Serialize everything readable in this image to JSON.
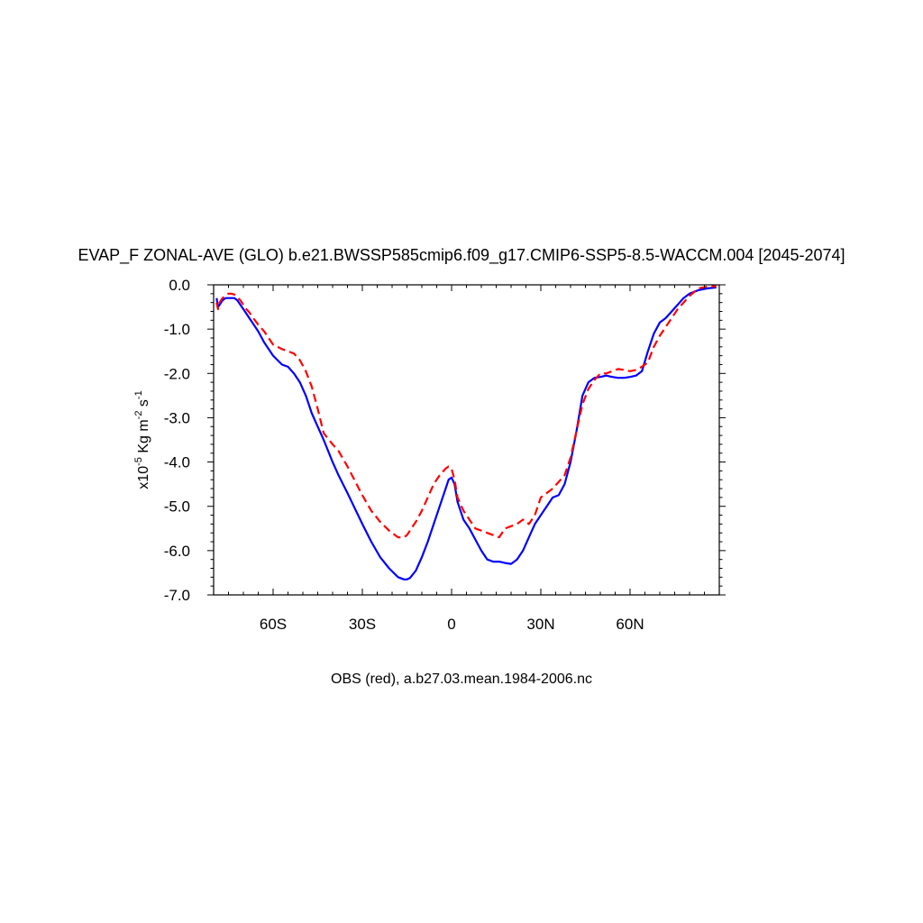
{
  "chart_data": {
    "type": "line",
    "title": "EVAP_F ZONAL-AVE (GLO) b.e21.BWSSP585cmip6.f09_g17.CMIP6-SSP5-8.5-WACCM.004 [2045-2074]",
    "subtitle": "OBS (red), a.b27.03.mean.1984-2006.nc",
    "ylabel": {
      "prefix": "x10",
      "exp1": "-5",
      "unit1": " Kg m",
      "exp2": "-2",
      "unit2": " s",
      "exp3": "-1"
    },
    "xlim": [
      -80,
      90
    ],
    "ylim": [
      -7.0,
      0.0
    ],
    "grid": false,
    "xticks": [
      {
        "value": -60,
        "label": "60S"
      },
      {
        "value": -30,
        "label": "30S"
      },
      {
        "value": 0,
        "label": "0"
      },
      {
        "value": 30,
        "label": "30N"
      },
      {
        "value": 60,
        "label": "60N"
      }
    ],
    "yticks": [
      {
        "value": 0.0,
        "label": "0.0"
      },
      {
        "value": -1.0,
        "label": "-1.0"
      },
      {
        "value": -2.0,
        "label": "-2.0"
      },
      {
        "value": -3.0,
        "label": "-3.0"
      },
      {
        "value": -4.0,
        "label": "-4.0"
      },
      {
        "value": -5.0,
        "label": "-5.0"
      },
      {
        "value": -6.0,
        "label": "-6.0"
      },
      {
        "value": -7.0,
        "label": "-7.0"
      }
    ],
    "series": [
      {
        "color": "#0000ff",
        "style": "solid",
        "x": [
          -79,
          -78.5,
          -78,
          -77,
          -76,
          -75,
          -74,
          -73,
          -72,
          -71,
          -70,
          -69,
          -68,
          -67,
          -65,
          -63,
          -60,
          -57,
          -55,
          -53,
          -51,
          -49,
          -47,
          -45,
          -43,
          -40,
          -38,
          -35,
          -30,
          -27,
          -24,
          -21,
          -18,
          -16,
          -15,
          -14,
          -12,
          -10,
          -8,
          -6,
          -4,
          -2,
          -1,
          0,
          1,
          2,
          4,
          6,
          8,
          10,
          12,
          14,
          16,
          18,
          20,
          22,
          24,
          26,
          28,
          30,
          32,
          34,
          36,
          38,
          40,
          42,
          44,
          46,
          48,
          50,
          52,
          54,
          56,
          58,
          60,
          62,
          64,
          66,
          68,
          70,
          72,
          74,
          76,
          78,
          80,
          83,
          86,
          89
        ],
        "y": [
          -0.3,
          -0.5,
          -0.45,
          -0.35,
          -0.3,
          -0.3,
          -0.3,
          -0.3,
          -0.35,
          -0.45,
          -0.55,
          -0.65,
          -0.75,
          -0.85,
          -1.05,
          -1.3,
          -1.6,
          -1.8,
          -1.85,
          -2.0,
          -2.2,
          -2.5,
          -2.9,
          -3.2,
          -3.5,
          -4.0,
          -4.3,
          -4.7,
          -5.4,
          -5.8,
          -6.15,
          -6.4,
          -6.6,
          -6.65,
          -6.65,
          -6.62,
          -6.45,
          -6.15,
          -5.8,
          -5.4,
          -5.0,
          -4.6,
          -4.4,
          -4.35,
          -4.5,
          -4.9,
          -5.3,
          -5.5,
          -5.75,
          -6.0,
          -6.2,
          -6.25,
          -6.25,
          -6.28,
          -6.3,
          -6.2,
          -6.0,
          -5.7,
          -5.4,
          -5.2,
          -5.0,
          -4.8,
          -4.75,
          -4.5,
          -4.0,
          -3.3,
          -2.5,
          -2.2,
          -2.1,
          -2.08,
          -2.05,
          -2.08,
          -2.1,
          -2.1,
          -2.08,
          -2.05,
          -1.95,
          -1.5,
          -1.1,
          -0.85,
          -0.75,
          -0.6,
          -0.45,
          -0.3,
          -0.2,
          -0.12,
          -0.08,
          -0.06
        ]
      },
      {
        "color": "#ff0000",
        "style": "dashed",
        "x": [
          -79,
          -78.5,
          -78,
          -77,
          -76,
          -75,
          -74,
          -73,
          -72,
          -71,
          -70,
          -69,
          -68,
          -67,
          -65,
          -63,
          -60,
          -57,
          -55,
          -53,
          -51,
          -49,
          -47,
          -45,
          -43,
          -40,
          -38,
          -35,
          -30,
          -27,
          -24,
          -21,
          -18,
          -16,
          -15,
          -14,
          -12,
          -10,
          -8,
          -6,
          -4,
          -2,
          -1,
          0,
          1,
          2,
          4,
          6,
          8,
          10,
          12,
          14,
          16,
          18,
          20,
          22,
          24,
          26,
          28,
          30,
          32,
          34,
          36,
          38,
          40,
          42,
          44,
          46,
          48,
          50,
          52,
          54,
          56,
          58,
          60,
          62,
          64,
          66,
          68,
          70,
          72,
          74,
          76,
          78,
          80,
          83,
          86,
          89
        ],
        "y": [
          -0.4,
          -0.55,
          -0.4,
          -0.3,
          -0.25,
          -0.2,
          -0.2,
          -0.22,
          -0.28,
          -0.35,
          -0.45,
          -0.55,
          -0.62,
          -0.72,
          -0.9,
          -1.05,
          -1.35,
          -1.45,
          -1.5,
          -1.55,
          -1.7,
          -1.95,
          -2.3,
          -2.8,
          -3.35,
          -3.6,
          -3.75,
          -4.1,
          -4.75,
          -5.1,
          -5.35,
          -5.55,
          -5.7,
          -5.7,
          -5.65,
          -5.55,
          -5.35,
          -5.1,
          -4.8,
          -4.5,
          -4.3,
          -4.15,
          -4.1,
          -4.15,
          -4.4,
          -4.8,
          -5.1,
          -5.3,
          -5.5,
          -5.55,
          -5.6,
          -5.65,
          -5.7,
          -5.5,
          -5.45,
          -5.4,
          -5.3,
          -5.4,
          -5.2,
          -4.8,
          -4.7,
          -4.6,
          -4.45,
          -4.3,
          -3.9,
          -3.3,
          -2.7,
          -2.35,
          -2.15,
          -2.0,
          -2.0,
          -1.95,
          -1.9,
          -1.92,
          -1.95,
          -1.92,
          -1.85,
          -1.75,
          -1.4,
          -1.15,
          -0.95,
          -0.75,
          -0.55,
          -0.4,
          -0.25,
          -0.08,
          -0.04,
          -0.03
        ]
      }
    ]
  }
}
